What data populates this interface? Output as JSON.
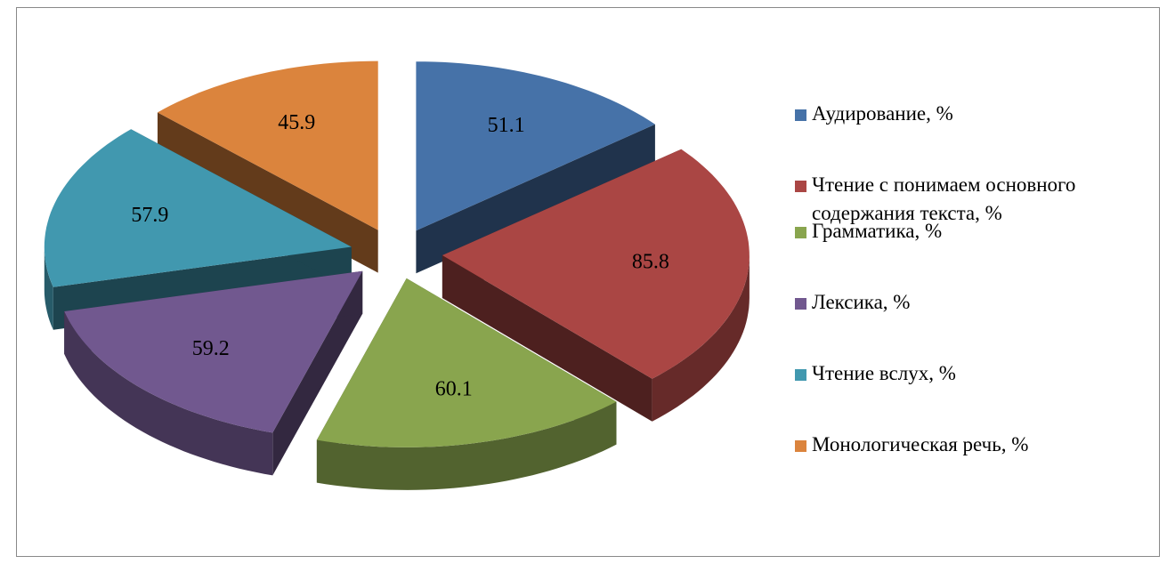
{
  "chart_data": {
    "type": "pie",
    "categories": [
      "Аудирование, %",
      "Чтение с понимаем основного содержания текста, %",
      "Грамматика, %",
      "Лексика, %",
      "Чтение вслух, %",
      "Монологическая речь, %"
    ],
    "values": [
      51.1,
      85.8,
      60.1,
      59.2,
      57.9,
      45.9
    ],
    "colors": [
      "#4672a8",
      "#aa4644",
      "#89a54e",
      "#71588f",
      "#4198af",
      "#db843d"
    ],
    "legend": "right"
  }
}
